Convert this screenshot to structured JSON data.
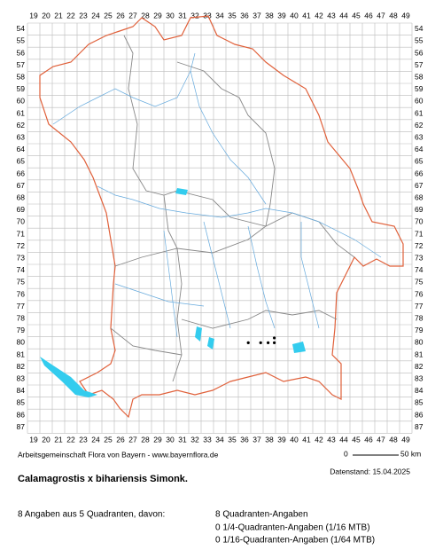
{
  "columns": [
    19,
    20,
    21,
    22,
    23,
    24,
    25,
    26,
    27,
    28,
    29,
    30,
    31,
    32,
    33,
    34,
    35,
    36,
    37,
    38,
    39,
    40,
    41,
    42,
    43,
    44,
    45,
    46,
    47,
    48,
    49
  ],
  "rows": [
    54,
    55,
    56,
    57,
    58,
    59,
    60,
    61,
    62,
    63,
    64,
    65,
    66,
    67,
    68,
    69,
    70,
    71,
    72,
    73,
    74,
    75,
    76,
    77,
    78,
    79,
    80,
    81,
    82,
    83,
    84,
    85,
    86,
    87
  ],
  "records": [
    {
      "x": 36.3,
      "y": 80
    },
    {
      "x": 37.3,
      "y": 80
    },
    {
      "x": 37.9,
      "y": 80
    },
    {
      "x": 38.4,
      "y": 80
    },
    {
      "x": 38.4,
      "y": 79.6
    }
  ],
  "credit": "Arbeitsgemeinschaft Flora von Bayern - www.bayernflora.de",
  "scale": {
    "start": "0",
    "end": "50 km"
  },
  "date": "Datenstand: 15.04.2025",
  "title": "Calamagrostis x bihariensis Simonk.",
  "summary": "8 Angaben aus 5 Quadranten, davon:",
  "details": [
    "8 Quadranten-Angaben",
    "0 1/4-Quadranten-Angaben (1/16 MTB)",
    "0 1/16-Quadranten-Angaben (1/64 MTB)"
  ]
}
